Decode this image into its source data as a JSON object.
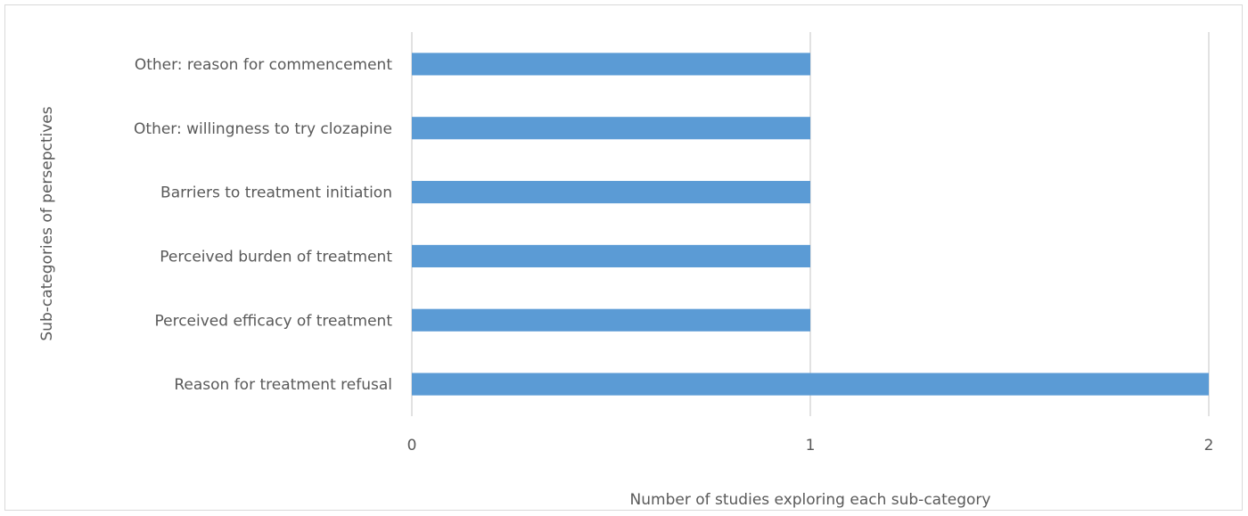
{
  "chart_data": {
    "type": "bar",
    "orientation": "horizontal",
    "categories": [
      "Reason for treatment refusal",
      "Perceived efficacy of treatment",
      "Perceived burden of treatment",
      "Barriers to treatment initiation",
      "Other: willingness to try clozapine",
      "Other: reason for commencement"
    ],
    "values": [
      2,
      1,
      1,
      1,
      1,
      1
    ],
    "xlabel": "Number of studies exploring each sub-category",
    "ylabel": "Sub-categories of persepctives",
    "xlim": [
      0,
      2
    ],
    "xticks": [
      "0",
      "1",
      "2"
    ],
    "grid": "vertical",
    "legend": "none",
    "bar_color": "#5b9bd5",
    "grid_color": "#d9d9d9"
  }
}
